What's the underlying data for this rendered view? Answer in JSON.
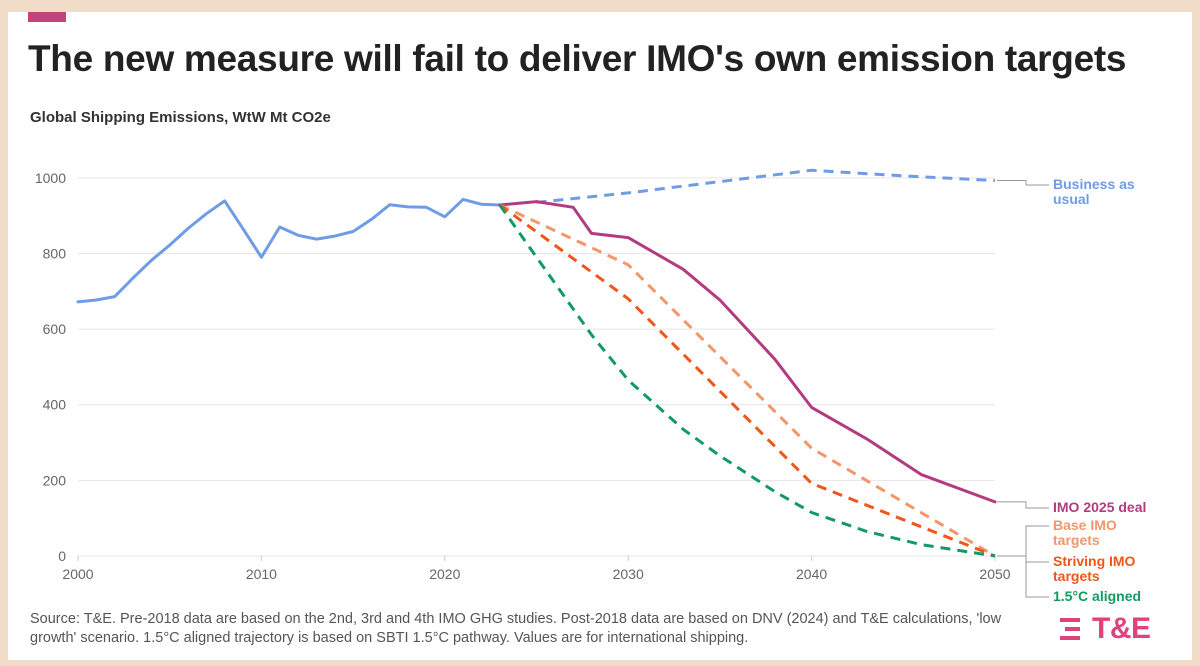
{
  "header": {
    "title": "The new measure will fail to deliver IMO's own emission targets",
    "subtitle": "Global Shipping Emissions, WtW Mt CO2e"
  },
  "footer": {
    "source": "Source: T&E. Pre-2018 data are based on the 2nd, 3rd and 4th IMO GHG studies. Post-2018 data are based on DNV (2024) and T&E calculations, 'low growth' scenario. 1.5°C aligned trajectory is based on SBTI 1.5°C pathway. Values are for international shipping.",
    "logo_text": "T&E"
  },
  "colors": {
    "background": "#f0dcc9",
    "accent": "#c2447a",
    "logo": "#e0427a",
    "grid": "#e6e6e6",
    "axis_text": "#666666",
    "leader": "#999999"
  },
  "chart_data": {
    "type": "line",
    "title": "The new measure will fail to deliver IMO's own emission targets",
    "ylabel": "Global Shipping Emissions, WtW Mt CO2e",
    "xlabel": "",
    "xlim": [
      2000,
      2050
    ],
    "ylim": [
      0,
      1100
    ],
    "grid": true,
    "x_ticks": [
      2000,
      2010,
      2020,
      2030,
      2040,
      2050
    ],
    "y_ticks": [
      0,
      200,
      400,
      600,
      800,
      1000
    ],
    "series": [
      {
        "name": "Historical",
        "label": "",
        "color": "#6f9ce6",
        "dashed": false,
        "points": [
          [
            2000,
            672
          ],
          [
            2001,
            677
          ],
          [
            2002,
            686
          ],
          [
            2003,
            735
          ],
          [
            2004,
            782
          ],
          [
            2005,
            822
          ],
          [
            2006,
            866
          ],
          [
            2007,
            905
          ],
          [
            2008,
            939
          ],
          [
            2009,
            865
          ],
          [
            2010,
            790
          ],
          [
            2011,
            870
          ],
          [
            2012,
            848
          ],
          [
            2013,
            838
          ],
          [
            2014,
            846
          ],
          [
            2015,
            858
          ],
          [
            2016,
            890
          ],
          [
            2017,
            929
          ],
          [
            2018,
            923
          ],
          [
            2019,
            922
          ],
          [
            2020,
            897
          ],
          [
            2021,
            943
          ],
          [
            2022,
            930
          ],
          [
            2023,
            928
          ]
        ]
      },
      {
        "name": "Business as usual",
        "label": "Business as usual",
        "color": "#6f9ce6",
        "dashed": true,
        "points": [
          [
            2025,
            935
          ],
          [
            2030,
            960
          ],
          [
            2035,
            990
          ],
          [
            2040,
            1020
          ],
          [
            2045,
            1005
          ],
          [
            2050,
            993
          ]
        ]
      },
      {
        "name": "IMO 2025 deal",
        "label": "IMO 2025 deal",
        "color": "#b33b7f",
        "dashed": false,
        "points": [
          [
            2023,
            928
          ],
          [
            2025,
            937
          ],
          [
            2027,
            922
          ],
          [
            2028,
            853
          ],
          [
            2030,
            842
          ],
          [
            2033,
            758
          ],
          [
            2035,
            677
          ],
          [
            2038,
            520
          ],
          [
            2040,
            393
          ],
          [
            2043,
            310
          ],
          [
            2046,
            215
          ],
          [
            2050,
            143
          ]
        ]
      },
      {
        "name": "Base IMO targets",
        "label": "Base IMO targets",
        "color": "#f5956a",
        "dashed": true,
        "points": [
          [
            2023,
            928
          ],
          [
            2030,
            770
          ],
          [
            2040,
            285
          ],
          [
            2050,
            0
          ]
        ]
      },
      {
        "name": "Striving IMO targets",
        "label": "Striving IMO targets",
        "color": "#f0561c",
        "dashed": true,
        "points": [
          [
            2023,
            928
          ],
          [
            2030,
            680
          ],
          [
            2040,
            192
          ],
          [
            2050,
            0
          ]
        ]
      },
      {
        "name": "1.5°C aligned",
        "label": "1.5°C aligned",
        "color": "#119b62",
        "dashed": true,
        "points": [
          [
            2023,
            928
          ],
          [
            2025,
            790
          ],
          [
            2028,
            585
          ],
          [
            2030,
            465
          ],
          [
            2033,
            335
          ],
          [
            2035,
            265
          ],
          [
            2038,
            170
          ],
          [
            2040,
            115
          ],
          [
            2043,
            65
          ],
          [
            2046,
            30
          ],
          [
            2050,
            0
          ]
        ]
      }
    ]
  }
}
